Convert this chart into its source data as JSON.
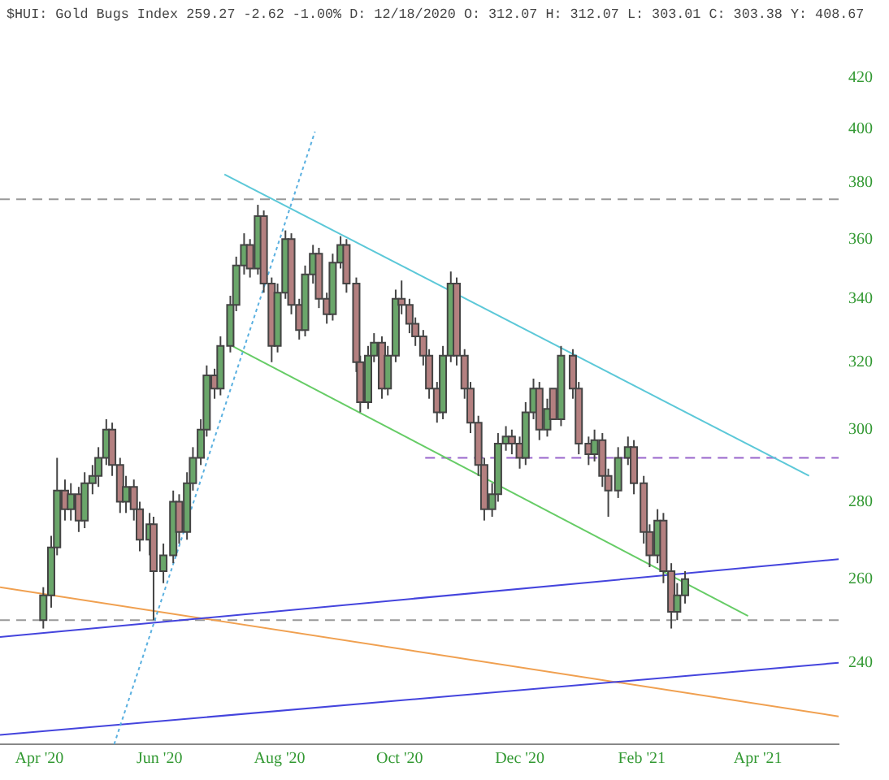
{
  "chart_data": {
    "type": "candlestick",
    "title": "$HUI: Gold Bugs Index 259.27 -2.62 -1.00% D: 12/18/2020 O: 312.07 H: 312.07 L: 303.01 C: 303.38 Y: 408.67",
    "x": [
      "2020-04-03",
      "2020-04-07",
      "2020-04-10",
      "2020-04-14",
      "2020-04-17",
      "2020-04-21",
      "2020-04-24",
      "2020-04-28",
      "2020-05-01",
      "2020-05-05",
      "2020-05-08",
      "2020-05-12",
      "2020-05-15",
      "2020-05-19",
      "2020-05-22",
      "2020-05-27",
      "2020-05-29",
      "2020-06-03",
      "2020-06-08",
      "2020-06-11",
      "2020-06-15",
      "2020-06-18",
      "2020-06-22",
      "2020-06-25",
      "2020-06-29",
      "2020-07-02",
      "2020-07-07",
      "2020-07-10",
      "2020-07-14",
      "2020-07-17",
      "2020-07-21",
      "2020-07-24",
      "2020-07-28",
      "2020-07-31",
      "2020-08-04",
      "2020-08-07",
      "2020-08-11",
      "2020-08-14",
      "2020-08-18",
      "2020-08-21",
      "2020-08-25",
      "2020-08-28",
      "2020-09-01",
      "2020-09-04",
      "2020-09-09",
      "2020-09-11",
      "2020-09-15",
      "2020-09-18",
      "2020-09-22",
      "2020-09-25",
      "2020-09-29",
      "2020-10-02",
      "2020-10-06",
      "2020-10-09",
      "2020-10-13",
      "2020-10-16",
      "2020-10-20",
      "2020-10-23",
      "2020-10-27",
      "2020-10-30",
      "2020-11-03",
      "2020-11-06",
      "2020-11-10",
      "2020-11-13",
      "2020-11-17",
      "2020-11-20",
      "2020-11-24",
      "2020-11-27",
      "2020-12-01",
      "2020-12-04",
      "2020-12-08",
      "2020-12-11",
      "2020-12-15",
      "2020-12-18",
      "2020-12-22",
      "2020-12-28",
      "2020-12-31",
      "2021-01-05",
      "2021-01-08",
      "2021-01-12",
      "2021-01-15",
      "2021-01-20",
      "2021-01-25",
      "2021-01-28",
      "2021-02-02",
      "2021-02-05",
      "2021-02-09",
      "2021-02-12",
      "2021-02-16",
      "2021-02-19",
      "2021-02-23"
    ],
    "ohlc": [
      [
        250,
        258,
        248,
        256
      ],
      [
        256,
        271,
        253,
        268
      ],
      [
        268,
        292,
        266,
        283
      ],
      [
        283,
        286,
        275,
        278
      ],
      [
        278,
        285,
        275,
        282
      ],
      [
        282,
        284,
        272,
        275
      ],
      [
        275,
        288,
        273,
        285
      ],
      [
        285,
        290,
        282,
        287
      ],
      [
        287,
        295,
        284,
        292
      ],
      [
        292,
        303,
        290,
        300
      ],
      [
        300,
        302,
        287,
        290
      ],
      [
        290,
        292,
        277,
        280
      ],
      [
        280,
        287,
        277,
        284
      ],
      [
        284,
        286,
        275,
        278
      ],
      [
        278,
        280,
        267,
        270
      ],
      [
        270,
        277,
        266,
        274
      ],
      [
        274,
        276,
        250,
        262
      ],
      [
        262,
        269,
        259,
        266
      ],
      [
        266,
        283,
        264,
        280
      ],
      [
        280,
        282,
        269,
        272
      ],
      [
        272,
        288,
        270,
        285
      ],
      [
        285,
        295,
        283,
        292
      ],
      [
        292,
        303,
        290,
        300
      ],
      [
        300,
        319,
        298,
        316
      ],
      [
        316,
        318,
        309,
        312
      ],
      [
        312,
        328,
        310,
        325
      ],
      [
        325,
        341,
        323,
        338
      ],
      [
        338,
        354,
        336,
        351
      ],
      [
        351,
        362,
        348,
        358
      ],
      [
        358,
        360,
        347,
        350
      ],
      [
        350,
        372,
        348,
        368
      ],
      [
        368,
        370,
        342,
        345
      ],
      [
        345,
        347,
        320,
        325
      ],
      [
        325,
        345,
        323,
        342
      ],
      [
        342,
        363,
        340,
        360
      ],
      [
        360,
        362,
        335,
        338
      ],
      [
        338,
        340,
        327,
        330
      ],
      [
        330,
        351,
        328,
        348
      ],
      [
        348,
        358,
        345,
        355
      ],
      [
        355,
        357,
        337,
        340
      ],
      [
        340,
        342,
        332,
        335
      ],
      [
        335,
        355,
        333,
        352
      ],
      [
        352,
        361,
        350,
        358
      ],
      [
        358,
        360,
        342,
        345
      ],
      [
        345,
        347,
        317,
        320
      ],
      [
        320,
        322,
        305,
        308
      ],
      [
        308,
        325,
        306,
        322
      ],
      [
        322,
        329,
        320,
        326
      ],
      [
        326,
        328,
        309,
        312
      ],
      [
        312,
        325,
        310,
        322
      ],
      [
        322,
        343,
        320,
        340
      ],
      [
        340,
        346,
        335,
        338
      ],
      [
        338,
        340,
        329,
        332
      ],
      [
        332,
        334,
        325,
        328
      ],
      [
        328,
        330,
        319,
        322
      ],
      [
        322,
        324,
        309,
        312
      ],
      [
        312,
        314,
        302,
        305
      ],
      [
        305,
        325,
        303,
        322
      ],
      [
        322,
        349,
        320,
        345
      ],
      [
        345,
        347,
        319,
        322
      ],
      [
        322,
        324,
        309,
        312
      ],
      [
        312,
        314,
        299,
        302
      ],
      [
        302,
        304,
        287,
        290
      ],
      [
        290,
        292,
        275,
        278
      ],
      [
        278,
        285,
        276,
        282
      ],
      [
        282,
        299,
        280,
        296
      ],
      [
        296,
        301,
        294,
        298
      ],
      [
        298,
        300,
        293,
        296
      ],
      [
        296,
        298,
        289,
        292
      ],
      [
        292,
        308,
        290,
        305
      ],
      [
        305,
        315,
        303,
        312
      ],
      [
        312,
        314,
        297,
        300
      ],
      [
        300,
        309,
        298,
        306
      ],
      [
        312,
        312,
        303,
        303
      ],
      [
        303,
        325,
        301,
        322
      ],
      [
        322,
        324,
        309,
        312
      ],
      [
        312,
        314,
        293,
        296
      ],
      [
        296,
        298,
        290,
        293
      ],
      [
        293,
        300,
        291,
        297
      ],
      [
        297,
        299,
        284,
        287
      ],
      [
        287,
        289,
        276,
        283
      ],
      [
        283,
        295,
        281,
        292
      ],
      [
        292,
        298,
        290,
        295
      ],
      [
        295,
        297,
        282,
        285
      ],
      [
        285,
        287,
        269,
        272
      ],
      [
        272,
        274,
        263,
        266
      ],
      [
        266,
        278,
        264,
        275
      ],
      [
        275,
        277,
        259,
        262
      ],
      [
        262,
        264,
        248,
        252
      ],
      [
        252,
        259,
        250,
        256
      ],
      [
        256,
        262,
        254,
        260
      ]
    ],
    "colors": [
      "#6aa66a",
      "#6aa66a",
      "#6aa66a",
      "#b48080",
      "#6aa66a",
      "#b48080",
      "#6aa66a",
      "#6aa66a",
      "#6aa66a",
      "#6aa66a",
      "#b48080",
      "#b48080",
      "#6aa66a",
      "#b48080",
      "#b48080",
      "#6aa66a",
      "#b48080",
      "#6aa66a",
      "#6aa66a",
      "#b48080",
      "#6aa66a",
      "#6aa66a",
      "#6aa66a",
      "#6aa66a",
      "#b48080",
      "#6aa66a",
      "#6aa66a",
      "#6aa66a",
      "#6aa66a",
      "#b48080",
      "#6aa66a",
      "#b48080",
      "#b48080",
      "#6aa66a",
      "#6aa66a",
      "#b48080",
      "#b48080",
      "#6aa66a",
      "#6aa66a",
      "#b48080",
      "#b48080",
      "#6aa66a",
      "#6aa66a",
      "#b48080",
      "#b48080",
      "#b48080",
      "#6aa66a",
      "#6aa66a",
      "#b48080",
      "#6aa66a",
      "#6aa66a",
      "#b48080",
      "#b48080",
      "#b48080",
      "#b48080",
      "#b48080",
      "#b48080",
      "#6aa66a",
      "#6aa66a",
      "#b48080",
      "#b48080",
      "#b48080",
      "#b48080",
      "#b48080",
      "#6aa66a",
      "#6aa66a",
      "#6aa66a",
      "#b48080",
      "#b48080",
      "#6aa66a",
      "#6aa66a",
      "#b48080",
      "#6aa66a",
      "#b48080",
      "#6aa66a",
      "#b48080",
      "#b48080",
      "#b48080",
      "#6aa66a",
      "#b48080",
      "#b48080",
      "#6aa66a",
      "#6aa66a",
      "#b48080",
      "#b48080",
      "#b48080",
      "#6aa66a",
      "#b48080",
      "#b48080",
      "#6aa66a",
      "#6aa66a"
    ],
    "series": [
      {
        "type": "line",
        "x": [
          "2020-05-09",
          "2020-08-19"
        ],
        "values": [
          222,
          399
        ],
        "color": "#5ab0e0",
        "line_style": "dotted"
      },
      {
        "type": "line",
        "x": [
          "2020-07-04",
          "2021-04-27"
        ],
        "values": [
          383,
          287
        ],
        "color": "#5cc8d8"
      },
      {
        "type": "line",
        "x": [
          "2020-07-08",
          "2021-03-27"
        ],
        "values": [
          325,
          251
        ],
        "color": "#66cc66"
      },
      {
        "type": "line",
        "x": [
          "2020-03-12",
          "2021-05-12"
        ],
        "values": [
          246,
          265
        ],
        "color": "#4444dd"
      },
      {
        "type": "line",
        "x": [
          "2020-03-12",
          "2021-05-12"
        ],
        "values": [
          224,
          240
        ],
        "color": "#4444dd"
      },
      {
        "type": "line",
        "x": [
          "2020-03-12",
          "2021-05-12"
        ],
        "values": [
          258,
          228
        ],
        "color": "#f0a050"
      },
      {
        "type": "line",
        "x": [
          "2020-10-14",
          "2021-05-12"
        ],
        "values": [
          292,
          292
        ],
        "color": "#9966cc",
        "line_style": "dashed"
      }
    ],
    "ref_lines": [
      {
        "axis": "y",
        "value": 374,
        "color": "#999999",
        "line_style": "dashed"
      },
      {
        "axis": "y",
        "value": 250,
        "color": "#999999",
        "line_style": "dashed"
      }
    ],
    "xlim": [
      "2020-03-12",
      "2021-05-12"
    ],
    "xticks": [
      {
        "value": "2020-04-01",
        "label": "Apr '20"
      },
      {
        "value": "2020-06-01",
        "label": "Jun '20"
      },
      {
        "value": "2020-08-01",
        "label": "Aug '20"
      },
      {
        "value": "2020-10-01",
        "label": "Oct '20"
      },
      {
        "value": "2020-12-01",
        "label": "Dec '20"
      },
      {
        "value": "2021-02-01",
        "label": "Feb '21"
      },
      {
        "value": "2021-04-01",
        "label": "Apr '21"
      }
    ],
    "ylim": [
      222,
      420
    ],
    "yticks": [
      240,
      260,
      280,
      300,
      320,
      340,
      360,
      380,
      400,
      420
    ],
    "log": true
  }
}
